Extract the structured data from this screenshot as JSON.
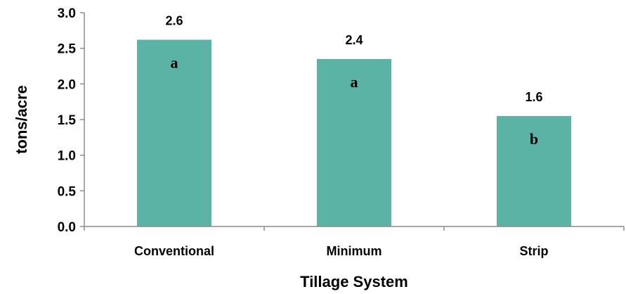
{
  "chart_data": {
    "type": "bar",
    "categories": [
      "Conventional",
      "Minimum",
      "Strip"
    ],
    "values": [
      2.62,
      2.35,
      1.55
    ],
    "value_labels": [
      "2.6",
      "2.4",
      "1.6"
    ],
    "group_letters": [
      "a",
      "a",
      "b"
    ],
    "xlabel": "Tillage System",
    "ylabel": "tons/acre",
    "ylim": [
      0,
      3.0
    ],
    "yticks": [
      "0.0",
      "0.5",
      "1.0",
      "1.5",
      "2.0",
      "2.5",
      "3.0"
    ],
    "ytick_values": [
      0,
      0.5,
      1.0,
      1.5,
      2.0,
      2.5,
      3.0
    ],
    "bar_color": "#5bb3a6",
    "axis_color": "#8c8c8c",
    "grid": false
  }
}
